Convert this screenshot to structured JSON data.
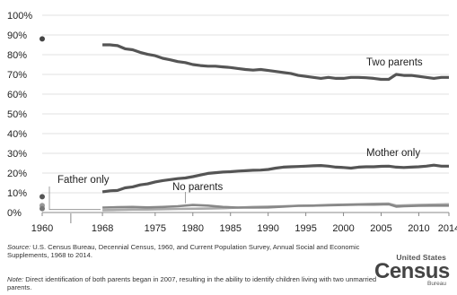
{
  "chart_data": {
    "type": "line",
    "ylim": [
      0,
      100
    ],
    "y_ticks": [
      "0%",
      "10%",
      "20%",
      "30%",
      "40%",
      "50%",
      "60%",
      "70%",
      "80%",
      "90%",
      "100%"
    ],
    "x_ticks": [
      "1960",
      "1968",
      "1975",
      "1980",
      "1985",
      "1990",
      "1995",
      "2000",
      "2005",
      "2010",
      "2014"
    ],
    "grid": "horizontal",
    "colors": {
      "two_parents": "#555555",
      "mother_only": "#555555",
      "father_only": "#aaaaaa",
      "no_parents": "#888888",
      "points_1960": "#444444"
    },
    "series": [
      {
        "name": "Two parents",
        "x": [
          1968,
          1969,
          1970,
          1971,
          1972,
          1973,
          1974,
          1975,
          1976,
          1977,
          1978,
          1979,
          1980,
          1981,
          1982,
          1983,
          1984,
          1985,
          1986,
          1987,
          1988,
          1989,
          1990,
          1991,
          1992,
          1993,
          1994,
          1995,
          1996,
          1997,
          1998,
          1999,
          2000,
          2001,
          2002,
          2003,
          2004,
          2005,
          2006,
          2007,
          2008,
          2009,
          2010,
          2011,
          2012,
          2013,
          2014
        ],
        "values": [
          85,
          85,
          84.6,
          83,
          82.5,
          81.2,
          80.2,
          79.5,
          78.2,
          77.4,
          76.5,
          76,
          75,
          74.5,
          74.2,
          74.2,
          73.8,
          73.5,
          73,
          72.5,
          72.2,
          72.5,
          72,
          71.5,
          71,
          70.5,
          69.5,
          69,
          68.5,
          68,
          68.5,
          68,
          68,
          68.5,
          68.5,
          68.3,
          68,
          67.5,
          67.5,
          70,
          69.5,
          69.5,
          69,
          68.5,
          68,
          68.5,
          68.5
        ]
      },
      {
        "name": "Mother only",
        "x": [
          1968,
          1969,
          1970,
          1971,
          1972,
          1973,
          1974,
          1975,
          1976,
          1977,
          1978,
          1979,
          1980,
          1981,
          1982,
          1983,
          1984,
          1985,
          1986,
          1987,
          1988,
          1989,
          1990,
          1991,
          1992,
          1993,
          1994,
          1995,
          1996,
          1997,
          1998,
          1999,
          2000,
          2001,
          2002,
          2003,
          2004,
          2005,
          2006,
          2007,
          2008,
          2009,
          2010,
          2011,
          2012,
          2013,
          2014
        ],
        "values": [
          10.5,
          11,
          11.2,
          12.5,
          13,
          14,
          14.5,
          15.5,
          16.2,
          16.7,
          17.2,
          17.5,
          18.2,
          19,
          19.8,
          20.2,
          20.5,
          20.7,
          21,
          21.2,
          21.4,
          21.5,
          21.8,
          22.5,
          23,
          23.2,
          23.3,
          23.5,
          23.7,
          23.8,
          23.5,
          23,
          22.8,
          22.5,
          23,
          23.2,
          23.2,
          23.4,
          23.5,
          23,
          22.8,
          23,
          23.2,
          23.5,
          24,
          23.5,
          23.5
        ]
      },
      {
        "name": "Father only",
        "x": [
          1968,
          1970,
          1972,
          1974,
          1976,
          1978,
          1980,
          1982,
          1984,
          1986,
          1988,
          1990,
          1992,
          1994,
          1996,
          1998,
          2000,
          2002,
          2004,
          2006,
          2007,
          2008,
          2010,
          2012,
          2014
        ],
        "values": [
          1.2,
          1.3,
          1.5,
          1.5,
          1.7,
          1.8,
          1.9,
          2,
          2.2,
          2.5,
          2.8,
          3,
          3.2,
          3.4,
          3.5,
          3.8,
          4,
          4.2,
          4.4,
          4.5,
          3.5,
          3.6,
          3.8,
          4,
          4.2
        ]
      },
      {
        "name": "No parents",
        "x": [
          1968,
          1970,
          1972,
          1974,
          1976,
          1978,
          1980,
          1982,
          1984,
          1986,
          1988,
          1990,
          1992,
          1994,
          1996,
          1998,
          2000,
          2002,
          2004,
          2006,
          2007,
          2008,
          2010,
          2012,
          2014
        ],
        "values": [
          2.5,
          2.7,
          2.8,
          2.6,
          2.8,
          3.2,
          3.8,
          3.5,
          2.8,
          2.5,
          2.5,
          2.6,
          3,
          3.4,
          3.5,
          3.7,
          3.8,
          4,
          4,
          4.2,
          3,
          3.2,
          3.4,
          3.5,
          3.5
        ]
      }
    ],
    "points_1960": [
      {
        "x": 1960,
        "value": 88
      },
      {
        "x": 1960,
        "value": 8
      },
      {
        "x": 1960,
        "value": 3.5
      },
      {
        "x": 1960,
        "value": 2
      }
    ]
  },
  "footer": {
    "source_label": "Source:",
    "source_text": "U.S. Census Bureau, Decennial Census, 1960, and Current Population Survey, Annual Social and Economic Supplements, 1968 to 2014.",
    "note_label": "Note:",
    "note_text": "Direct identification of both parents began in 2007, resulting in the ability to identify children living with two unmarried parents."
  },
  "logo": {
    "top": "United States",
    "main": "Census",
    "sub": "Bureau"
  }
}
